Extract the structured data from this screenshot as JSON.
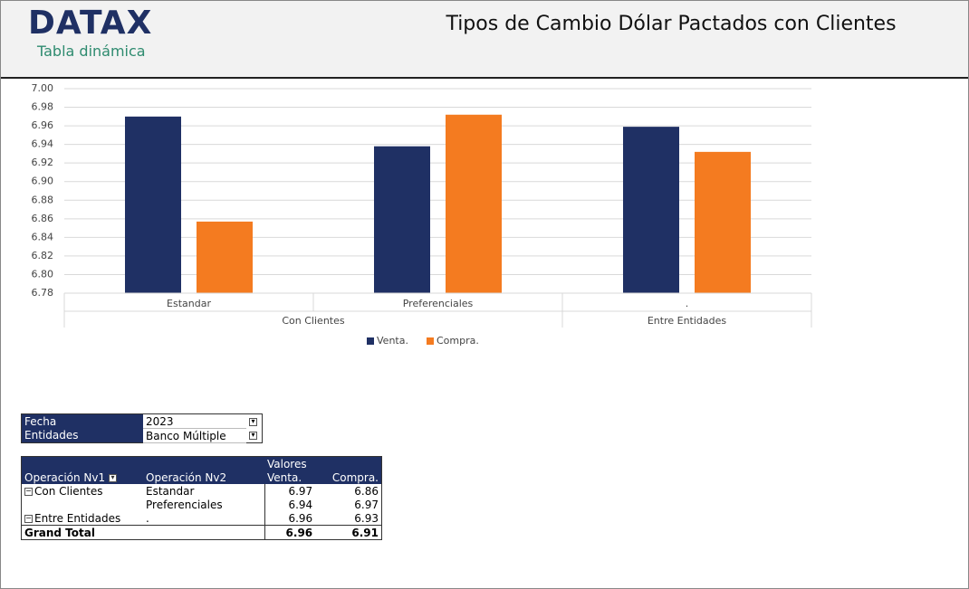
{
  "header": {
    "logo": "DATAX",
    "subtitle": "Tabla dinámica",
    "title": "Tipos de Cambio Dólar Pactados con Clientes"
  },
  "chart_data": {
    "type": "bar",
    "categories": [
      "Estandar",
      "Preferenciales",
      "."
    ],
    "category_groups": [
      "Con Clientes",
      "Con Clientes",
      "Entre Entidades"
    ],
    "series": [
      {
        "name": "Venta.",
        "color": "#1f3064",
        "values": [
          6.97,
          6.938,
          6.959
        ]
      },
      {
        "name": "Compra.",
        "color": "#f47b20",
        "values": [
          6.857,
          6.972,
          6.932
        ]
      }
    ],
    "ylim": [
      6.78,
      7.0
    ],
    "yticks": [
      6.78,
      {
        "value": 6.8,
        "label": "6.80"
      },
      6.82,
      6.84,
      6.86,
      6.88,
      {
        "value": 6.9,
        "label": "6.90"
      },
      6.92,
      6.94,
      6.96,
      6.98,
      {
        "value": 7.0,
        "label": "7.00"
      }
    ],
    "grid": true,
    "legend": "bottom"
  },
  "filters": {
    "rows": [
      {
        "label": "Fecha",
        "value": "2023"
      },
      {
        "label": "Entidades",
        "value": "Banco Múltiple"
      }
    ]
  },
  "pivot": {
    "values_header": "Valores",
    "columns": [
      "Operación Nv1",
      "Operación Nv2",
      "Venta.",
      "Compra."
    ],
    "rows": [
      {
        "nv1": "Con Clientes",
        "nv2": "Estandar",
        "venta": 6.97,
        "compra": 6.86
      },
      {
        "nv2": "Preferenciales",
        "venta": 6.94,
        "compra": 6.97
      },
      {
        "nv1": "Entre Entidades",
        "nv2": ".",
        "venta": 6.96,
        "compra": 6.93
      }
    ],
    "total": {
      "label": "Grand Total",
      "venta": 6.96,
      "compra": 6.91
    }
  }
}
